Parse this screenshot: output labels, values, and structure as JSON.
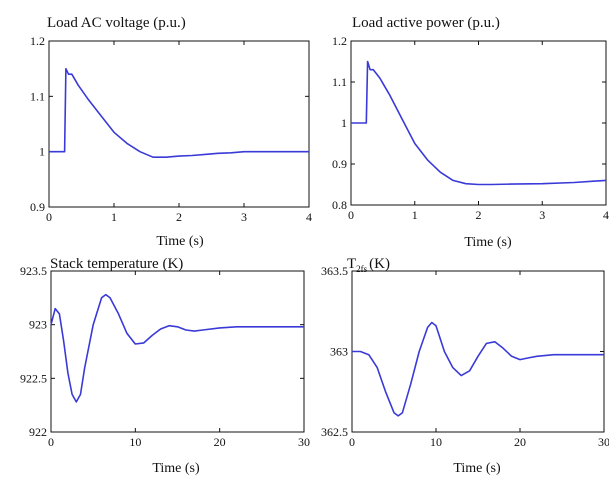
{
  "figure": {
    "background": "#ffffff",
    "line_color": "#3a3ad8"
  },
  "chart_data": [
    {
      "type": "line",
      "title": "Load AC voltage (p.u.)",
      "xlabel": "Time (s)",
      "ylabel": "",
      "xlim": [
        0,
        4
      ],
      "ylim": [
        0.9,
        1.2
      ],
      "xticks": [
        "0",
        "1",
        "2",
        "3",
        "4"
      ],
      "yticks": [
        "0.9",
        "1",
        "1.1",
        "1.2"
      ],
      "grid": false,
      "series": [
        {
          "x": [
            0,
            0.24,
            0.26,
            0.3,
            0.35,
            0.45,
            0.6,
            0.8,
            1.0,
            1.2,
            1.4,
            1.6,
            1.8,
            2.0,
            2.2,
            2.4,
            2.6,
            2.8,
            3.0,
            3.5,
            4.0
          ],
          "values": [
            1.0,
            1.0,
            1.15,
            1.14,
            1.14,
            1.12,
            1.095,
            1.065,
            1.035,
            1.015,
            1.0,
            0.99,
            0.99,
            0.992,
            0.993,
            0.995,
            0.997,
            0.998,
            1.0,
            1.0,
            1.0
          ]
        }
      ]
    },
    {
      "type": "line",
      "title": "Load active power (p.u.)",
      "xlabel": "Time (s)",
      "ylabel": "",
      "xlim": [
        0,
        4
      ],
      "ylim": [
        0.8,
        1.2
      ],
      "xticks": [
        "0",
        "1",
        "2",
        "3",
        "4"
      ],
      "yticks": [
        "0.8",
        "0.9",
        "1",
        "1.1",
        "1.2"
      ],
      "grid": false,
      "series": [
        {
          "x": [
            0,
            0.24,
            0.26,
            0.3,
            0.35,
            0.45,
            0.6,
            0.8,
            1.0,
            1.2,
            1.4,
            1.6,
            1.8,
            2.0,
            2.2,
            2.5,
            3.0,
            3.5,
            3.8,
            4.0
          ],
          "values": [
            1.0,
            1.0,
            1.15,
            1.13,
            1.13,
            1.11,
            1.07,
            1.01,
            0.95,
            0.91,
            0.88,
            0.86,
            0.852,
            0.85,
            0.85,
            0.851,
            0.852,
            0.855,
            0.858,
            0.86
          ]
        }
      ]
    },
    {
      "type": "line",
      "title": "Stack temperature (K)",
      "xlabel": "Time (s)",
      "ylabel": "",
      "xlim": [
        0,
        30
      ],
      "ylim": [
        922,
        923.5
      ],
      "xticks": [
        "0",
        "10",
        "20",
        "30"
      ],
      "yticks": [
        "922",
        "922.5",
        "923",
        "923.5"
      ],
      "grid": false,
      "series": [
        {
          "x": [
            0,
            0.5,
            1.0,
            1.5,
            2.0,
            2.5,
            3.0,
            3.5,
            4.0,
            5.0,
            6.0,
            6.5,
            7.0,
            8.0,
            9.0,
            10.0,
            11.0,
            12.0,
            13.0,
            14.0,
            15.0,
            16.0,
            17.0,
            18.0,
            20.0,
            22.0,
            25.0,
            30.0
          ],
          "values": [
            923.0,
            923.15,
            923.1,
            922.85,
            922.55,
            922.35,
            922.28,
            922.35,
            922.6,
            923.0,
            923.25,
            923.28,
            923.25,
            923.1,
            922.92,
            922.82,
            922.83,
            922.9,
            922.96,
            922.99,
            922.98,
            922.95,
            922.94,
            922.95,
            922.97,
            922.98,
            922.98,
            922.98
          ]
        }
      ]
    },
    {
      "type": "line",
      "title": "T",
      "title_sub": "2fs",
      "title_suffix": "(K)",
      "xlabel": "Time (s)",
      "ylabel": "",
      "xlim": [
        0,
        30
      ],
      "ylim": [
        362.5,
        363.5
      ],
      "xticks": [
        "0",
        "10",
        "20",
        "30"
      ],
      "yticks": [
        "362.5",
        "363",
        "363.5"
      ],
      "grid": false,
      "series": [
        {
          "x": [
            0,
            1.0,
            2.0,
            3.0,
            4.0,
            5.0,
            5.5,
            6.0,
            7.0,
            8.0,
            9.0,
            9.5,
            10.0,
            11.0,
            12.0,
            13.0,
            14.0,
            15.0,
            16.0,
            17.0,
            18.0,
            19.0,
            20.0,
            21.0,
            22.0,
            24.0,
            27.0,
            30.0
          ],
          "values": [
            363.0,
            363.0,
            362.98,
            362.9,
            362.75,
            362.62,
            362.6,
            362.62,
            362.8,
            363.0,
            363.15,
            363.18,
            363.16,
            363.0,
            362.9,
            362.85,
            362.88,
            362.97,
            363.05,
            363.06,
            363.02,
            362.97,
            362.95,
            362.96,
            362.97,
            362.98,
            362.98,
            362.98
          ]
        }
      ]
    }
  ]
}
